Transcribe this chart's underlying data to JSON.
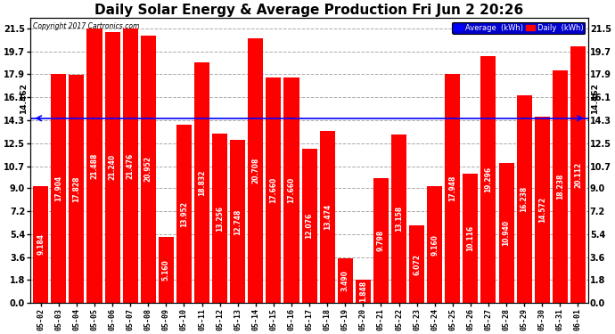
{
  "title": "Daily Solar Energy & Average Production Fri Jun 2 20:26",
  "copyright": "Copyright 2017 Cartronics.com",
  "categories": [
    "05-02",
    "05-03",
    "05-04",
    "05-05",
    "05-06",
    "05-07",
    "05-08",
    "05-09",
    "05-10",
    "05-11",
    "05-12",
    "05-13",
    "05-14",
    "05-15",
    "05-16",
    "05-17",
    "05-18",
    "05-19",
    "05-20",
    "05-21",
    "05-22",
    "05-23",
    "05-24",
    "05-25",
    "05-26",
    "05-27",
    "05-28",
    "05-29",
    "05-30",
    "05-31",
    "06-01"
  ],
  "values": [
    9.184,
    17.904,
    17.828,
    21.488,
    21.24,
    21.476,
    20.952,
    5.16,
    13.952,
    18.832,
    13.256,
    12.748,
    20.708,
    17.66,
    17.66,
    12.076,
    13.474,
    3.49,
    1.848,
    9.798,
    13.158,
    6.072,
    9.16,
    17.948,
    10.116,
    19.296,
    10.94,
    16.238,
    14.572,
    18.238,
    20.112
  ],
  "average": 14.462,
  "bar_color": "#ff0000",
  "avg_line_color": "#0000ff",
  "yticks": [
    0.0,
    1.8,
    3.6,
    5.4,
    7.2,
    9.0,
    10.7,
    12.5,
    14.3,
    16.1,
    17.9,
    19.7,
    21.5
  ],
  "ylim": [
    0.0,
    22.3
  ],
  "background_color": "#ffffff",
  "plot_bg_color": "#ffffff",
  "grid_color": "#aaaaaa",
  "title_fontsize": 11,
  "bar_label_fontsize": 5.5,
  "avg_label": "14.462",
  "legend_avg_text": "Average  (kWh)",
  "legend_daily_text": "Daily  (kWh)"
}
